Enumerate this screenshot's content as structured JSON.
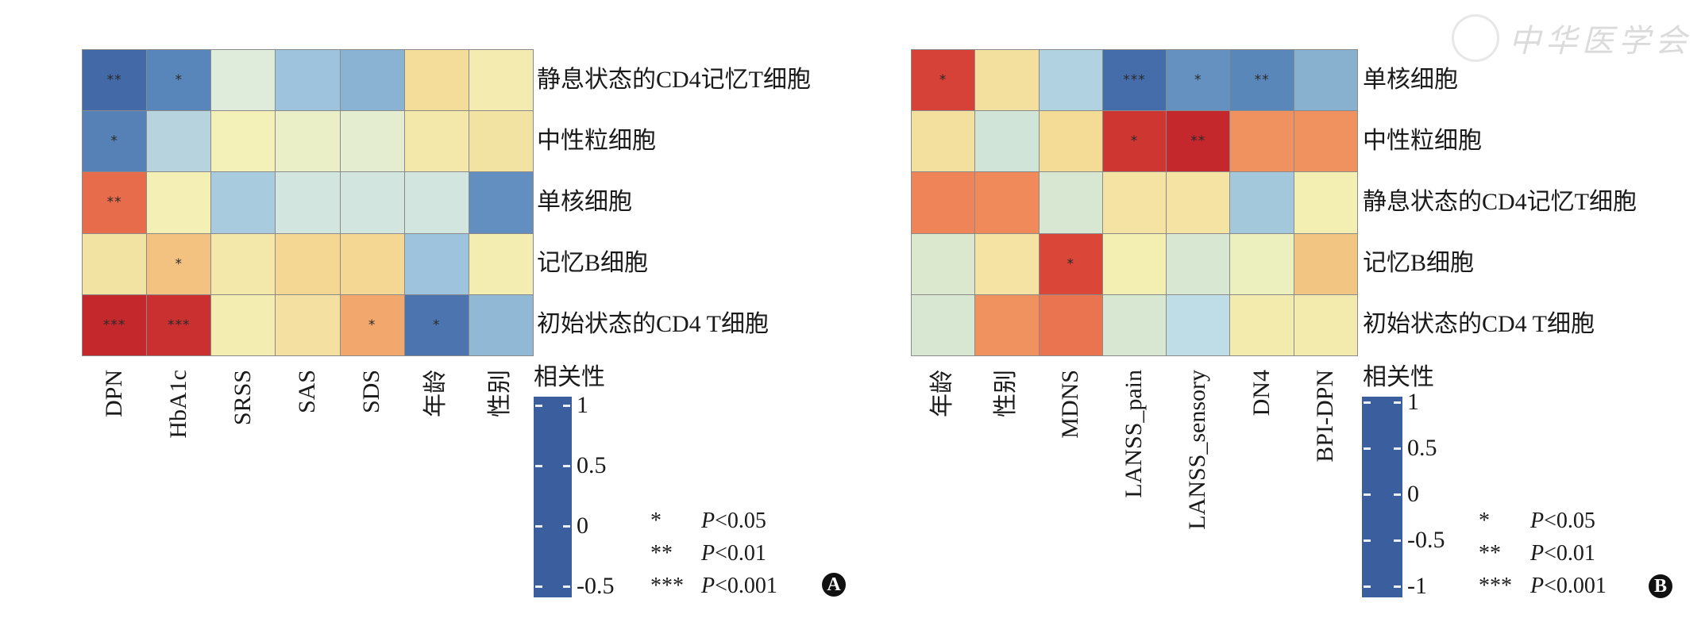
{
  "watermark": {
    "logo_text": "中华医学会"
  },
  "significance_legend": [
    {
      "stars": "*",
      "label_p": "P",
      "label_rest": "<0.05"
    },
    {
      "stars": "**",
      "label_p": "P",
      "label_rest": "<0.01"
    },
    {
      "stars": "***",
      "label_p": "P",
      "label_rest": "<0.001"
    }
  ],
  "chart_data": [
    {
      "type": "heatmap",
      "panel_label": "A",
      "rows": [
        "静息状态的CD4记忆T细胞",
        "中性粒细胞",
        "单核细胞",
        "记忆B细胞",
        "初始状态的CD4 T细胞"
      ],
      "columns": [
        "DPN",
        "HbA1c",
        "SRSS",
        "SAS",
        "SDS",
        "年龄",
        "性别"
      ],
      "values": [
        [
          -0.45,
          -0.33,
          -0.02,
          -0.15,
          -0.2,
          0.15,
          0.08
        ],
        [
          -0.35,
          -0.1,
          0.05,
          0.02,
          0.0,
          0.1,
          0.12
        ],
        [
          0.45,
          0.06,
          -0.13,
          -0.05,
          -0.05,
          -0.05,
          -0.3
        ],
        [
          0.12,
          0.25,
          0.1,
          0.18,
          0.18,
          -0.15,
          0.07
        ],
        [
          0.85,
          0.62,
          0.07,
          0.13,
          0.33,
          -0.4,
          -0.18
        ]
      ],
      "significance": [
        [
          "**",
          "*",
          "",
          "",
          "",
          "",
          ""
        ],
        [
          "*",
          "",
          "",
          "",
          "",
          "",
          ""
        ],
        [
          "**",
          "",
          "",
          "",
          "",
          "",
          ""
        ],
        [
          "",
          "*",
          "",
          "",
          "",
          "",
          ""
        ],
        [
          "***",
          "***",
          "",
          "",
          "*",
          "*",
          ""
        ]
      ],
      "colorbar": {
        "title": "相关性",
        "range": [
          -0.5,
          1
        ],
        "ticks": [
          1,
          0.5,
          0,
          -0.5
        ],
        "tick_labels": [
          "1",
          "0.5",
          "0",
          "-0.5"
        ],
        "stops": [
          [
            -0.5,
            "#3A5E9E"
          ],
          [
            -0.32,
            "#5A88BC"
          ],
          [
            -0.15,
            "#9DC4DC"
          ],
          [
            -0.03,
            "#DCEBE0"
          ],
          [
            0.05,
            "#F3F1B8"
          ],
          [
            0.2,
            "#F4D38C"
          ],
          [
            0.35,
            "#F2A068"
          ],
          [
            0.5,
            "#E0523D"
          ],
          [
            0.65,
            "#C4282D"
          ],
          [
            1,
            "#C4282D"
          ]
        ]
      }
    },
    {
      "type": "heatmap",
      "panel_label": "B",
      "rows": [
        "单核细胞",
        "中性粒细胞",
        "静息状态的CD4记忆T细胞",
        "记忆B细胞",
        "初始状态的CD4 T细胞"
      ],
      "columns": [
        "年龄",
        "性别",
        "MDNS",
        "LANSS_pain",
        "LANSS_sensory",
        "DN4",
        "BPI-DPN"
      ],
      "values": [
        [
          0.65,
          0.12,
          -0.2,
          -0.8,
          -0.5,
          -0.55,
          -0.35
        ],
        [
          0.12,
          -0.1,
          0.15,
          0.72,
          0.85,
          0.38,
          0.38
        ],
        [
          0.42,
          0.4,
          -0.08,
          0.1,
          0.1,
          -0.25,
          0.03
        ],
        [
          -0.07,
          0.1,
          0.62,
          0.03,
          -0.08,
          -0.02,
          0.24
        ],
        [
          -0.08,
          0.38,
          0.47,
          -0.08,
          -0.15,
          0.05,
          0.05
        ]
      ],
      "significance": [
        [
          "*",
          "",
          "",
          "***",
          "*",
          "**",
          ""
        ],
        [
          "",
          "",
          "",
          "*",
          "**",
          "",
          ""
        ],
        [
          "",
          "",
          "",
          "",
          "",
          "",
          ""
        ],
        [
          "",
          "",
          "*",
          "",
          "",
          "",
          ""
        ],
        [
          "",
          "",
          "",
          "",
          "",
          "",
          ""
        ]
      ],
      "colorbar": {
        "title": "相关性",
        "range": [
          -1,
          1
        ],
        "ticks": [
          1,
          0.5,
          0,
          -0.5,
          -1
        ],
        "tick_labels": [
          "1",
          "0.5",
          "0",
          "-0.5",
          "-1"
        ],
        "stops": [
          [
            -1,
            "#3A5E9E"
          ],
          [
            -0.6,
            "#4E7CB3"
          ],
          [
            -0.4,
            "#7AA6CB"
          ],
          [
            -0.15,
            "#BFDDE6"
          ],
          [
            0,
            "#F3F2B8"
          ],
          [
            0.2,
            "#F4D48C"
          ],
          [
            0.4,
            "#F08A5B"
          ],
          [
            0.6,
            "#DC4A3A"
          ],
          [
            0.8,
            "#C4282D"
          ],
          [
            1,
            "#C4282D"
          ]
        ]
      }
    }
  ]
}
